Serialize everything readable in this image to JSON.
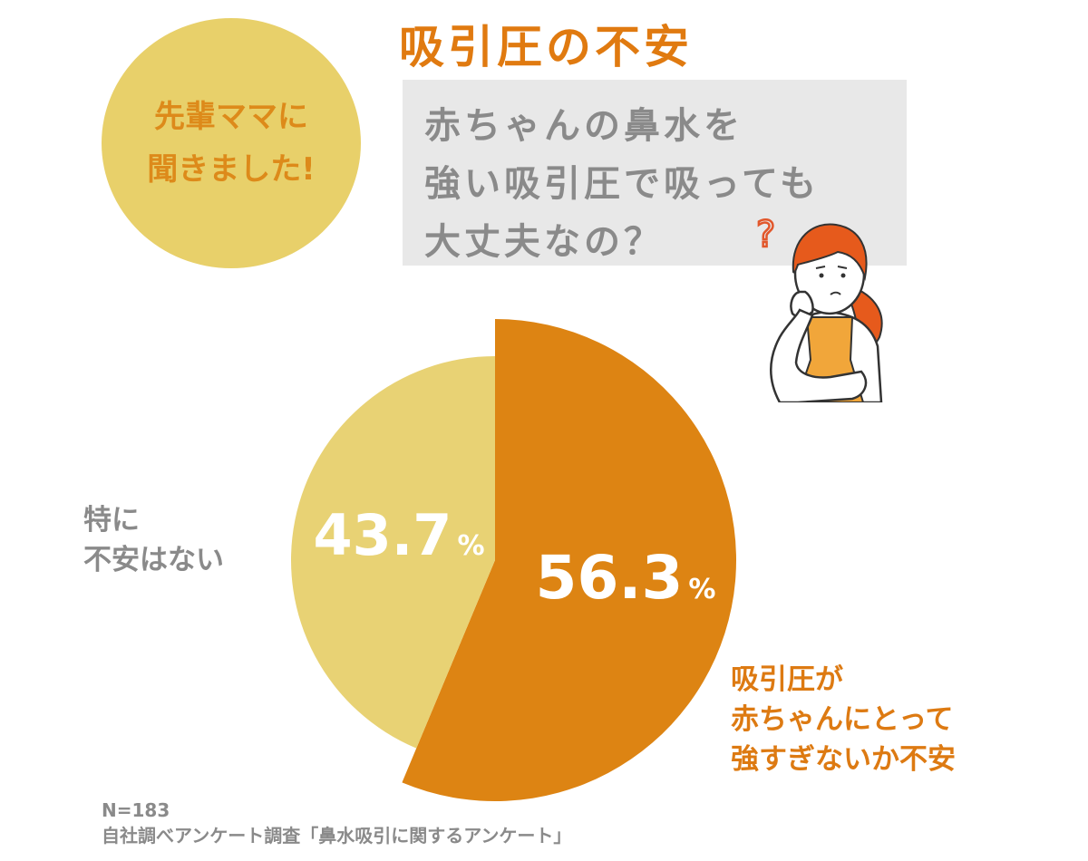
{
  "title": "吸引圧の不安",
  "badge": {
    "line1": "先輩ママに",
    "line2": "聞きました!"
  },
  "question": {
    "line1": "赤ちゃんの鼻水を",
    "line2": "強い吸引圧で吸っても",
    "line3": "大丈夫なの？",
    "mark": "?"
  },
  "chart_data": {
    "type": "pie",
    "slices": [
      {
        "label": "吸引圧が赤ちゃんにとって強すぎないか不安",
        "value": 56.3,
        "display": "56.3",
        "unit": "%",
        "color": "#dd8413"
      },
      {
        "label": "特に不安はない",
        "value": 43.7,
        "display": "43.7",
        "unit": "%",
        "color": "#e8d274"
      }
    ]
  },
  "legend": {
    "a": {
      "line1": "特に",
      "line2": "不安はない"
    },
    "b": {
      "line1": "吸引圧が",
      "line2": "赤ちゃんにとって",
      "line3": "強すぎないか不安"
    }
  },
  "footer": {
    "n": "N=183",
    "source": "自社調べアンケート調査「鼻水吸引に関するアンケート」"
  },
  "colors": {
    "accent": "#e07a10",
    "badge": "#e8d06a",
    "box": "#e8e8e8",
    "gray_text": "#8a8a8a"
  }
}
